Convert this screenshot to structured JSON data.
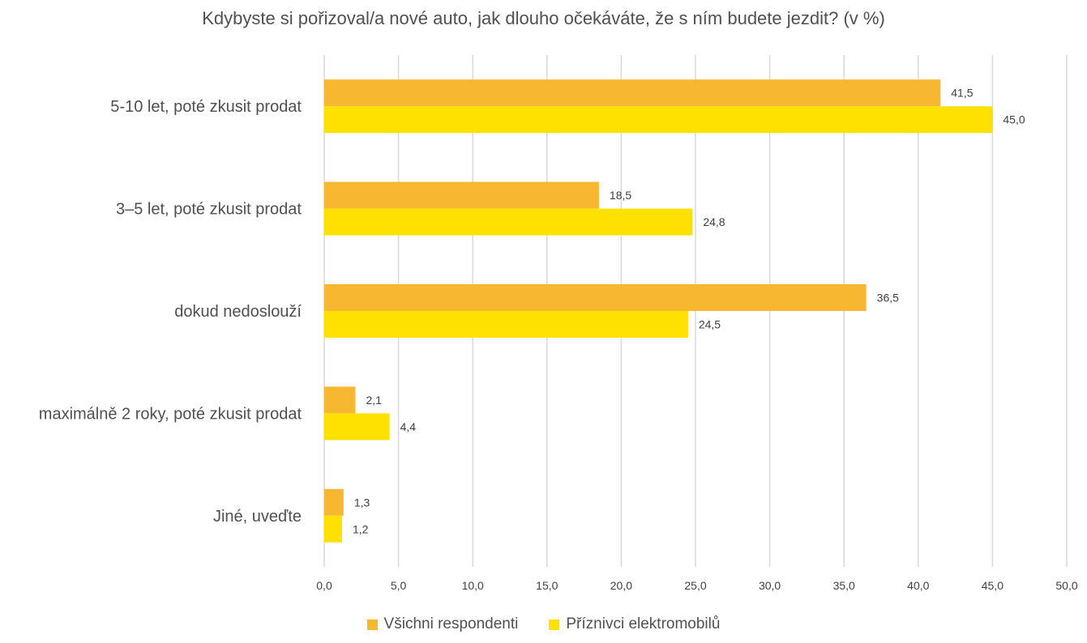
{
  "chart_data": {
    "type": "bar",
    "orientation": "horizontal",
    "title": "Kdybyste si pořizoval/a nové auto, jak dlouho očekáváte, že s ním budete jezdit? (v %)",
    "categories": [
      "5-10 let, poté zkusit prodat",
      "3–5 let, poté zkusit prodat",
      "dokud nedoslouží",
      "maximálně 2 roky, poté zkusit prodat",
      "Jiné, uveďte"
    ],
    "series": [
      {
        "name": "Všichni respondenti",
        "color": "#F7B731",
        "values": [
          41.5,
          18.5,
          36.5,
          2.1,
          1.3
        ],
        "labels": [
          "41,5",
          "18,5",
          "36,5",
          "2,1",
          "1,3"
        ]
      },
      {
        "name": "Příznivci elektromobilů",
        "color": "#FFE100",
        "values": [
          45.0,
          24.8,
          24.5,
          4.4,
          1.2
        ],
        "labels": [
          "45,0",
          "24,8",
          "24,5",
          "4,4",
          "1,2"
        ]
      }
    ],
    "xlim": [
      0,
      50
    ],
    "xticks": [
      0,
      5,
      10,
      15,
      20,
      25,
      30,
      35,
      40,
      45,
      50
    ],
    "xtick_labels": [
      "0,0",
      "5,0",
      "10,0",
      "15,0",
      "20,0",
      "25,0",
      "30,0",
      "35,0",
      "40,0",
      "45,0",
      "50,0"
    ],
    "grid": "vertical",
    "legend_position": "bottom"
  }
}
